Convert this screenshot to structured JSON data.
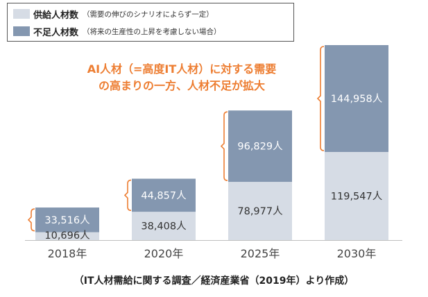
{
  "legend": {
    "items": [
      {
        "label": "供給人材数",
        "note": "（需要の伸びのシナリオによらず一定）",
        "color": "#D6DCE5"
      },
      {
        "label": "不足人材数",
        "note": "（将来の生産性の上昇を考慮しない場合）",
        "color": "#8497B0"
      }
    ]
  },
  "annotation": {
    "line1": "AI人材（=高度IT人材）に対する需要",
    "line2": "の高まりの一方、人材不足が拡大",
    "color": "#ED7D31"
  },
  "source": "（IT人材需給に関する調査／経済産業省（2019年）より作成）",
  "chart_data": {
    "type": "bar",
    "stacked": true,
    "categories": [
      "2018年",
      "2020年",
      "2025年",
      "2030年"
    ],
    "series": [
      {
        "name": "供給人材数",
        "values": [
          10696,
          38408,
          78977,
          119547
        ],
        "labels": [
          "10,696人",
          "38,408人",
          "78,977人",
          "119,547人"
        ],
        "color": "#D6DCE5"
      },
      {
        "name": "不足人材数",
        "values": [
          33516,
          44857,
          96829,
          144958
        ],
        "labels": [
          "33,516人",
          "44,857人",
          "96,829人",
          "144,958人"
        ],
        "color": "#8497B0"
      }
    ],
    "ylim": [
      0,
      264505
    ],
    "grid": false,
    "legend_position": "top-left"
  }
}
